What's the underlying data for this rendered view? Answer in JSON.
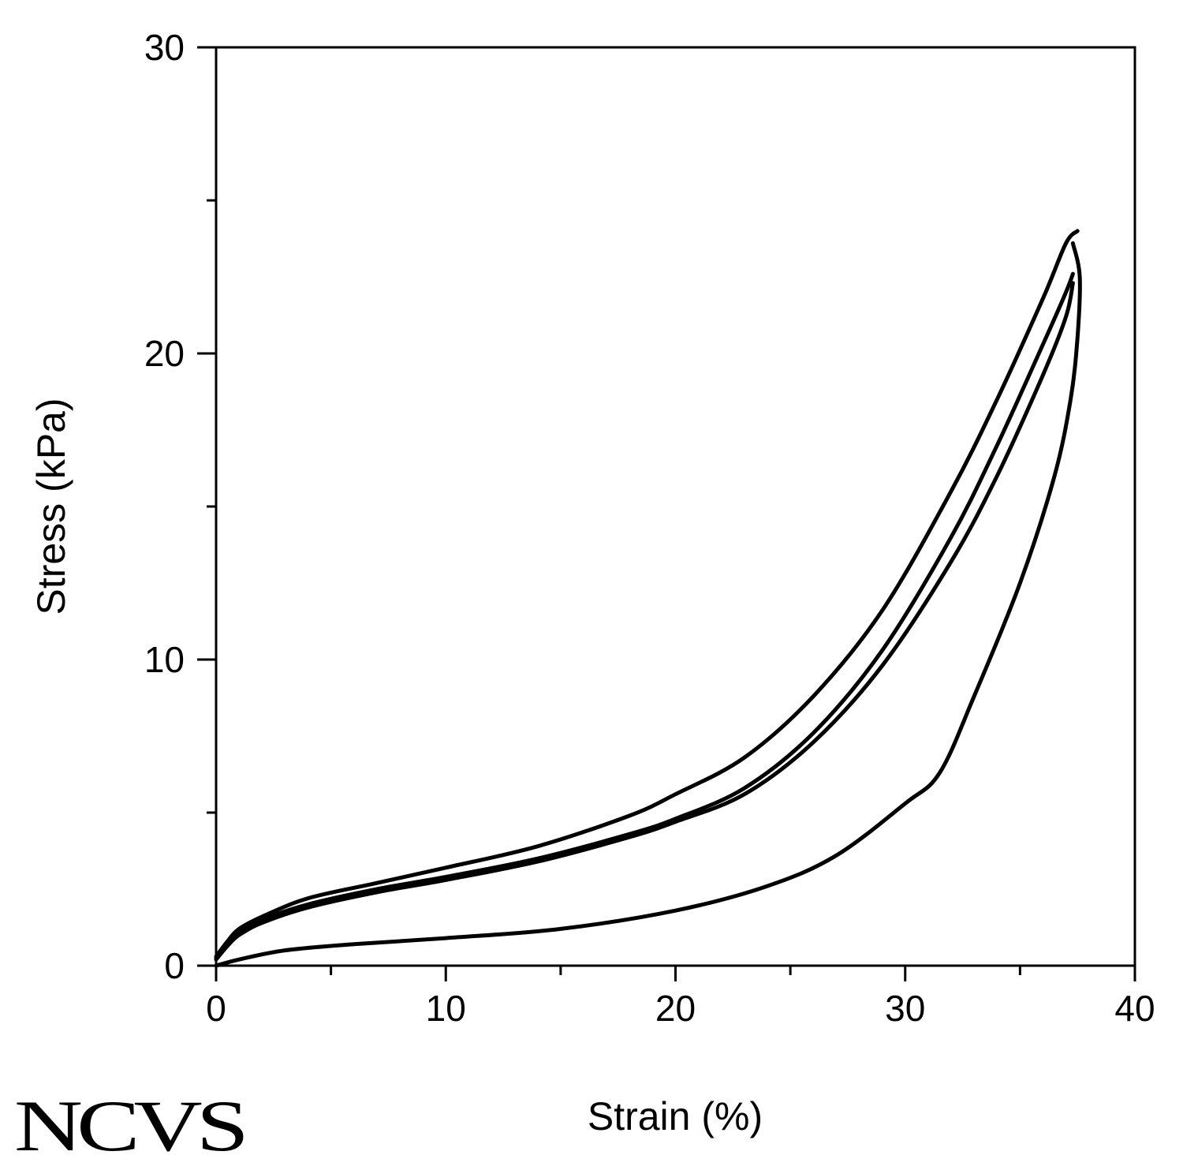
{
  "logo": {
    "text": "NCVS"
  },
  "chart_data": {
    "type": "line",
    "title": "",
    "xlabel": "Strain (%)",
    "ylabel": "Stress (kPa)",
    "xlim": [
      0,
      40
    ],
    "ylim": [
      0,
      30
    ],
    "x_ticks": [
      0,
      10,
      20,
      30,
      40
    ],
    "y_ticks": [
      0,
      10,
      20,
      30
    ],
    "grid": false,
    "legend": "none",
    "line_color": "#000000",
    "series": [
      {
        "x": [
          0,
          0.5,
          1,
          2,
          4,
          7,
          10,
          14,
          18,
          20,
          23,
          26,
          29,
          32,
          34,
          36,
          37,
          37.5
        ],
        "y": [
          0.3,
          0.8,
          1.2,
          1.6,
          2.2,
          2.7,
          3.2,
          3.9,
          4.9,
          5.6,
          6.8,
          8.8,
          11.6,
          15.5,
          18.5,
          21.8,
          23.6,
          24.0
        ]
      },
      {
        "x": [
          0,
          0.5,
          1,
          2,
          4,
          7,
          10,
          14,
          18,
          20,
          23,
          26,
          29,
          32,
          34,
          36,
          37,
          37.3
        ],
        "y": [
          0.25,
          0.7,
          1.1,
          1.5,
          2.0,
          2.5,
          2.9,
          3.5,
          4.3,
          4.8,
          5.8,
          7.6,
          10.3,
          14.0,
          17.0,
          20.3,
          22.0,
          22.6
        ]
      },
      {
        "x": [
          0,
          0.5,
          1,
          2,
          4,
          7,
          10,
          14,
          18,
          20,
          23,
          26,
          29,
          32,
          34,
          36,
          37,
          37.3
        ],
        "y": [
          0.2,
          0.65,
          1.0,
          1.4,
          1.9,
          2.4,
          2.8,
          3.4,
          4.2,
          4.7,
          5.6,
          7.3,
          9.8,
          13.2,
          16.0,
          19.3,
          21.2,
          22.3
        ]
      },
      {
        "x": [
          37.3,
          37.6,
          37.5,
          37.2,
          36.5,
          35,
          33,
          31.5,
          30,
          27,
          24,
          20,
          15,
          10,
          6,
          3,
          1,
          0
        ],
        "y": [
          23.6,
          22.5,
          20.5,
          18.5,
          16.0,
          12.5,
          8.8,
          6.3,
          5.3,
          3.6,
          2.6,
          1.8,
          1.2,
          0.9,
          0.7,
          0.5,
          0.2,
          0
        ]
      }
    ]
  }
}
